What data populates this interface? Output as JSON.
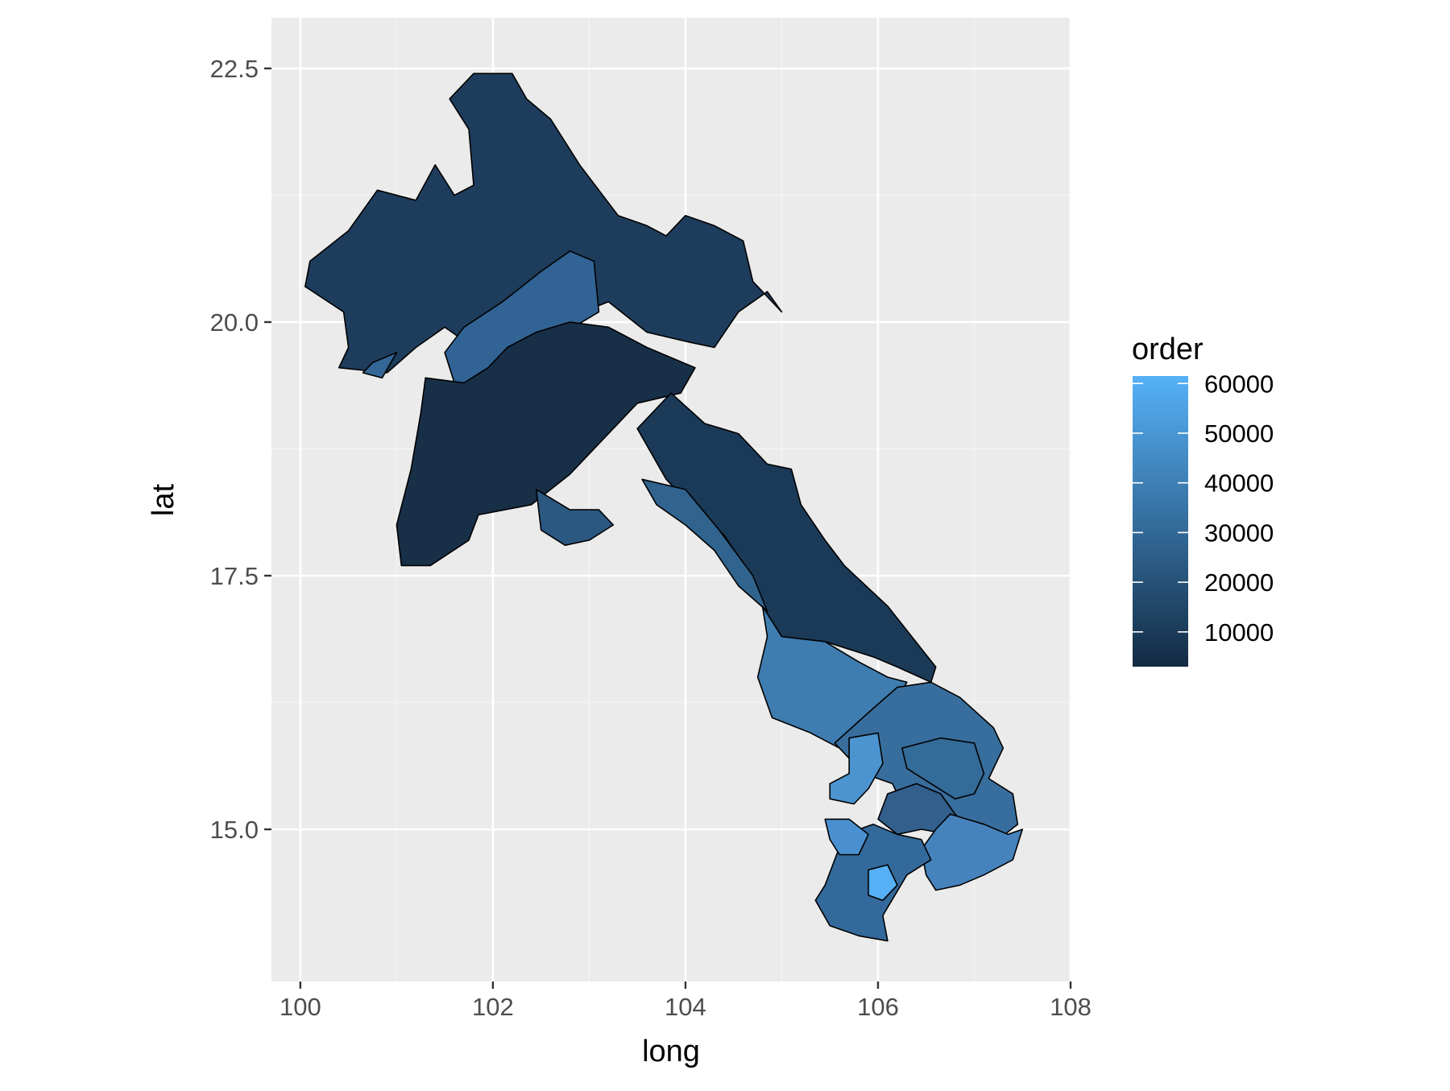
{
  "chart_data": {
    "type": "choropleth",
    "xlabel": "long",
    "ylabel": "lat",
    "xlim": [
      99.7,
      108
    ],
    "ylim": [
      13.5,
      23
    ],
    "x_ticks": [
      {
        "value": 100,
        "label": "100"
      },
      {
        "value": 102,
        "label": "102"
      },
      {
        "value": 104,
        "label": "104"
      },
      {
        "value": 106,
        "label": "106"
      },
      {
        "value": 108,
        "label": "108"
      }
    ],
    "y_ticks": [
      {
        "value": 15.0,
        "label": "15.0"
      },
      {
        "value": 17.5,
        "label": "17.5"
      },
      {
        "value": 20.0,
        "label": "20.0"
      },
      {
        "value": 22.5,
        "label": "22.5"
      }
    ],
    "grid": true,
    "legend": {
      "title": "order",
      "position": "right",
      "range": [
        3000,
        61500
      ],
      "low_color": "#132b43",
      "high_color": "#56b1f7",
      "breaks": [
        {
          "value": 10000,
          "label": "10000"
        },
        {
          "value": 20000,
          "label": "20000"
        },
        {
          "value": 30000,
          "label": "30000"
        },
        {
          "value": 40000,
          "label": "40000"
        },
        {
          "value": 50000,
          "label": "50000"
        },
        {
          "value": 60000,
          "label": "60000"
        }
      ]
    },
    "regions": [
      {
        "id": "northwest",
        "order": 10000,
        "color": "#1e3d5d",
        "points": [
          [
            101.4,
            21.55
          ],
          [
            101.2,
            21.2
          ],
          [
            100.8,
            21.3
          ],
          [
            100.5,
            20.9
          ],
          [
            100.1,
            20.6
          ],
          [
            100.05,
            20.35
          ],
          [
            100.45,
            20.1
          ],
          [
            100.5,
            19.75
          ],
          [
            100.4,
            19.55
          ],
          [
            100.9,
            19.5
          ],
          [
            101.2,
            19.75
          ],
          [
            101.5,
            19.95
          ],
          [
            101.8,
            19.75
          ],
          [
            102.2,
            20.05
          ],
          [
            102.8,
            20.05
          ],
          [
            103.2,
            20.2
          ],
          [
            103.6,
            19.9
          ],
          [
            104.05,
            19.8
          ],
          [
            104.3,
            19.75
          ],
          [
            104.55,
            20.1
          ],
          [
            104.85,
            20.3
          ],
          [
            105.0,
            20.1
          ],
          [
            104.7,
            20.4
          ],
          [
            104.6,
            20.8
          ],
          [
            104.3,
            20.95
          ],
          [
            104.0,
            21.05
          ],
          [
            103.8,
            20.85
          ],
          [
            103.6,
            20.95
          ],
          [
            103.3,
            21.05
          ],
          [
            102.9,
            21.55
          ],
          [
            102.6,
            22.0
          ],
          [
            102.35,
            22.2
          ],
          [
            102.2,
            22.45
          ],
          [
            101.8,
            22.45
          ],
          [
            101.55,
            22.2
          ],
          [
            101.75,
            21.9
          ],
          [
            101.8,
            21.35
          ],
          [
            101.6,
            21.25
          ]
        ]
      },
      {
        "id": "north-middle",
        "order": 25000,
        "color": "#346797",
        "points": [
          [
            100.75,
            19.6
          ],
          [
            101.0,
            19.7
          ],
          [
            100.85,
            19.45
          ],
          [
            100.65,
            19.5
          ]
        ]
      },
      {
        "id": "luang-prabang-west",
        "order": 28000,
        "color": "#316394",
        "points": [
          [
            101.5,
            19.7
          ],
          [
            101.7,
            19.95
          ],
          [
            102.1,
            20.2
          ],
          [
            102.5,
            20.5
          ],
          [
            102.8,
            20.7
          ],
          [
            103.05,
            20.6
          ],
          [
            103.1,
            20.1
          ],
          [
            102.75,
            19.9
          ],
          [
            102.5,
            19.55
          ],
          [
            102.05,
            19.5
          ],
          [
            101.85,
            19.2
          ],
          [
            101.6,
            19.4
          ]
        ]
      },
      {
        "id": "vientiane-province",
        "order": 3000,
        "color": "#182f48",
        "points": [
          [
            101.3,
            19.45
          ],
          [
            101.7,
            19.4
          ],
          [
            101.95,
            19.55
          ],
          [
            102.15,
            19.75
          ],
          [
            102.45,
            19.9
          ],
          [
            102.8,
            20.0
          ],
          [
            103.2,
            19.95
          ],
          [
            103.6,
            19.75
          ],
          [
            104.1,
            19.55
          ],
          [
            103.95,
            19.3
          ],
          [
            103.5,
            19.2
          ],
          [
            103.2,
            18.9
          ],
          [
            102.8,
            18.5
          ],
          [
            102.4,
            18.2
          ],
          [
            101.85,
            18.1
          ],
          [
            101.75,
            17.85
          ],
          [
            101.35,
            17.6
          ],
          [
            101.05,
            17.6
          ],
          [
            101.0,
            18.0
          ],
          [
            101.15,
            18.55
          ],
          [
            101.25,
            19.1
          ]
        ]
      },
      {
        "id": "vientiane-capital",
        "order": 24000,
        "color": "#2b5881",
        "points": [
          [
            102.45,
            18.35
          ],
          [
            102.8,
            18.15
          ],
          [
            103.1,
            18.15
          ],
          [
            103.25,
            18.0
          ],
          [
            103.0,
            17.85
          ],
          [
            102.75,
            17.8
          ],
          [
            102.5,
            17.95
          ]
        ]
      },
      {
        "id": "central-north",
        "order": 9000,
        "color": "#1b3a58",
        "points": [
          [
            103.5,
            18.95
          ],
          [
            103.85,
            19.3
          ],
          [
            104.2,
            19.0
          ],
          [
            104.55,
            18.9
          ],
          [
            104.85,
            18.6
          ],
          [
            105.1,
            18.55
          ],
          [
            105.2,
            18.2
          ],
          [
            105.45,
            17.85
          ],
          [
            105.65,
            17.6
          ],
          [
            106.1,
            17.2
          ],
          [
            106.6,
            16.6
          ],
          [
            106.55,
            16.45
          ],
          [
            106.2,
            16.6
          ],
          [
            105.95,
            16.7
          ],
          [
            105.45,
            16.85
          ],
          [
            104.9,
            16.9
          ],
          [
            104.8,
            17.2
          ],
          [
            104.65,
            17.55
          ],
          [
            104.4,
            17.9
          ],
          [
            104.05,
            18.2
          ],
          [
            103.8,
            18.45
          ]
        ]
      },
      {
        "id": "bolikhamxay",
        "order": 26000,
        "color": "#30648f",
        "points": [
          [
            103.55,
            18.45
          ],
          [
            104.0,
            18.35
          ],
          [
            104.35,
            17.95
          ],
          [
            104.7,
            17.5
          ],
          [
            104.85,
            17.15
          ],
          [
            104.55,
            17.4
          ],
          [
            104.3,
            17.75
          ],
          [
            104.0,
            18.0
          ],
          [
            103.7,
            18.2
          ]
        ]
      },
      {
        "id": "savannakhet",
        "order": 36000,
        "color": "#3f7cb0",
        "points": [
          [
            104.8,
            17.2
          ],
          [
            105.0,
            16.9
          ],
          [
            105.45,
            16.85
          ],
          [
            105.8,
            16.65
          ],
          [
            106.1,
            16.5
          ],
          [
            106.3,
            16.45
          ],
          [
            106.05,
            16.0
          ],
          [
            105.9,
            15.8
          ],
          [
            105.6,
            15.8
          ],
          [
            105.3,
            15.95
          ],
          [
            104.9,
            16.1
          ],
          [
            104.75,
            16.5
          ],
          [
            104.85,
            16.9
          ]
        ]
      },
      {
        "id": "saravane",
        "order": 31000,
        "color": "#386e9d",
        "points": [
          [
            105.55,
            15.85
          ],
          [
            105.9,
            16.15
          ],
          [
            106.2,
            16.4
          ],
          [
            106.55,
            16.45
          ],
          [
            106.85,
            16.3
          ],
          [
            107.2,
            16.0
          ],
          [
            107.3,
            15.8
          ],
          [
            107.15,
            15.5
          ],
          [
            107.4,
            15.35
          ],
          [
            107.45,
            15.05
          ],
          [
            107.25,
            14.9
          ],
          [
            107.0,
            14.95
          ],
          [
            106.8,
            15.15
          ],
          [
            106.5,
            15.0
          ],
          [
            106.3,
            15.15
          ],
          [
            106.15,
            15.45
          ],
          [
            105.85,
            15.55
          ]
        ]
      },
      {
        "id": "saravane-west",
        "order": 50000,
        "color": "#4b94d0",
        "points": [
          [
            105.7,
            15.9
          ],
          [
            106.0,
            15.95
          ],
          [
            106.05,
            15.65
          ],
          [
            105.9,
            15.4
          ],
          [
            105.75,
            15.25
          ],
          [
            105.5,
            15.3
          ],
          [
            105.5,
            15.45
          ],
          [
            105.7,
            15.55
          ]
        ]
      },
      {
        "id": "sekong-east",
        "order": 30000,
        "color": "#336b99",
        "points": [
          [
            106.25,
            15.8
          ],
          [
            106.65,
            15.9
          ],
          [
            107.0,
            15.85
          ],
          [
            107.1,
            15.55
          ],
          [
            107.0,
            15.35
          ],
          [
            106.8,
            15.3
          ],
          [
            106.55,
            15.45
          ],
          [
            106.3,
            15.6
          ]
        ]
      },
      {
        "id": "sekong",
        "order": 27000,
        "color": "#325f8c",
        "points": [
          [
            106.1,
            15.35
          ],
          [
            106.4,
            15.45
          ],
          [
            106.65,
            15.35
          ],
          [
            106.8,
            15.15
          ],
          [
            106.75,
            14.95
          ],
          [
            106.45,
            15.0
          ],
          [
            106.2,
            14.95
          ],
          [
            106.0,
            15.1
          ]
        ]
      },
      {
        "id": "attapeu",
        "order": 42000,
        "color": "#4683bd",
        "points": [
          [
            106.75,
            15.15
          ],
          [
            107.1,
            15.05
          ],
          [
            107.35,
            14.95
          ],
          [
            107.5,
            15.0
          ],
          [
            107.4,
            14.7
          ],
          [
            107.1,
            14.55
          ],
          [
            106.85,
            14.45
          ],
          [
            106.6,
            14.4
          ],
          [
            106.5,
            14.55
          ],
          [
            106.45,
            14.8
          ],
          [
            106.6,
            15.0
          ]
        ]
      },
      {
        "id": "champasak",
        "order": 29000,
        "color": "#34699b",
        "points": [
          [
            105.35,
            14.3
          ],
          [
            105.5,
            14.05
          ],
          [
            105.8,
            13.95
          ],
          [
            106.1,
            13.9
          ],
          [
            106.05,
            14.15
          ],
          [
            106.3,
            14.55
          ],
          [
            106.55,
            14.7
          ],
          [
            106.45,
            14.9
          ],
          [
            106.2,
            14.95
          ],
          [
            105.95,
            15.05
          ],
          [
            105.65,
            14.95
          ],
          [
            105.55,
            14.7
          ],
          [
            105.45,
            14.45
          ]
        ]
      },
      {
        "id": "champasak-north",
        "order": 49000,
        "color": "#4a90d0",
        "points": [
          [
            105.45,
            15.1
          ],
          [
            105.7,
            15.1
          ],
          [
            105.9,
            14.95
          ],
          [
            105.8,
            14.75
          ],
          [
            105.6,
            14.75
          ],
          [
            105.5,
            14.9
          ]
        ]
      },
      {
        "id": "pakse-area",
        "order": 61000,
        "color": "#56b0f5",
        "points": [
          [
            105.9,
            14.6
          ],
          [
            106.1,
            14.65
          ],
          [
            106.2,
            14.45
          ],
          [
            106.05,
            14.3
          ],
          [
            105.9,
            14.35
          ]
        ]
      }
    ]
  }
}
